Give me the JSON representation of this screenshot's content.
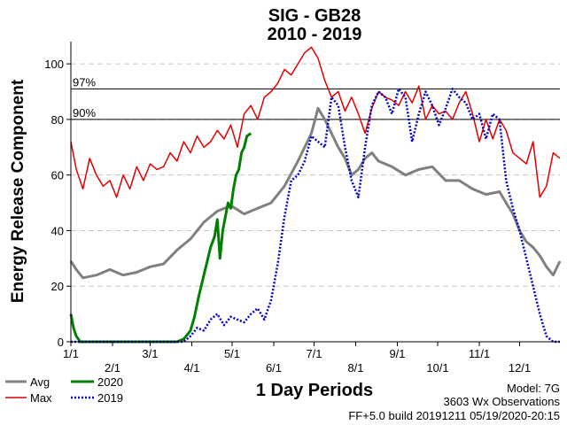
{
  "chart_data": {
    "type": "line",
    "title": "SIG - GB28",
    "subtitle": "2010 - 2019",
    "xlabel": "1 Day Periods",
    "ylabel": "Energy Release Component",
    "ylim": [
      0,
      108
    ],
    "yticks": [
      0,
      20,
      40,
      60,
      80,
      100
    ],
    "xlim": [
      1,
      365
    ],
    "xticks": [
      {
        "label": "1/1",
        "day": 1
      },
      {
        "label": "2/1",
        "day": 32
      },
      {
        "label": "3/1",
        "day": 60
      },
      {
        "label": "4/1",
        "day": 91
      },
      {
        "label": "5/1",
        "day": 121
      },
      {
        "label": "6/1",
        "day": 152
      },
      {
        "label": "7/1",
        "day": 182
      },
      {
        "label": "8/1",
        "day": 213
      },
      {
        "label": "9/1",
        "day": 244
      },
      {
        "label": "10/1",
        "day": 274
      },
      {
        "label": "11/1",
        "day": 305
      },
      {
        "label": "12/1",
        "day": 335
      }
    ],
    "grid": true,
    "reference_lines": [
      {
        "label": "97%",
        "value": 91
      },
      {
        "label": "90%",
        "value": 80
      }
    ],
    "series": [
      {
        "name": "Avg",
        "color": "#808080",
        "style": "solid",
        "x": [
          1,
          5,
          10,
          20,
          30,
          40,
          50,
          60,
          70,
          80,
          90,
          100,
          110,
          120,
          130,
          140,
          150,
          160,
          170,
          180,
          185,
          190,
          195,
          200,
          205,
          210,
          215,
          220,
          225,
          230,
          240,
          250,
          260,
          270,
          280,
          290,
          300,
          310,
          320,
          325,
          330,
          335,
          340,
          345,
          350,
          355,
          360,
          365
        ],
        "y": [
          29,
          26,
          23,
          24,
          26,
          24,
          25,
          27,
          28,
          33,
          37,
          43,
          47,
          49,
          46,
          48,
          50,
          56,
          65,
          75,
          84,
          80,
          75,
          70,
          66,
          60,
          62,
          66,
          68,
          65,
          63,
          60,
          62,
          63,
          58,
          58,
          55,
          53,
          54,
          50,
          46,
          40,
          36,
          34,
          31,
          27,
          24,
          29
        ]
      },
      {
        "name": "Max",
        "color": "#e00000",
        "style": "solid",
        "x": [
          1,
          5,
          10,
          15,
          20,
          25,
          30,
          35,
          40,
          45,
          50,
          55,
          60,
          65,
          70,
          75,
          80,
          85,
          90,
          95,
          100,
          105,
          110,
          115,
          120,
          125,
          130,
          135,
          140,
          145,
          150,
          155,
          160,
          165,
          170,
          175,
          180,
          185,
          190,
          195,
          200,
          205,
          210,
          215,
          220,
          225,
          230,
          235,
          240,
          245,
          250,
          255,
          260,
          265,
          270,
          275,
          280,
          285,
          290,
          295,
          300,
          305,
          310,
          315,
          320,
          325,
          330,
          335,
          340,
          345,
          350,
          355,
          360,
          365
        ],
        "y": [
          72,
          62,
          55,
          66,
          60,
          56,
          58,
          52,
          60,
          55,
          63,
          58,
          64,
          62,
          63,
          68,
          65,
          72,
          68,
          74,
          70,
          72,
          76,
          73,
          78,
          70,
          82,
          85,
          80,
          88,
          90,
          93,
          98,
          96,
          100,
          104,
          106,
          102,
          94,
          88,
          90,
          83,
          88,
          82,
          75,
          84,
          90,
          88,
          87,
          85,
          90,
          86,
          92,
          80,
          85,
          82,
          83,
          80,
          86,
          90,
          82,
          72,
          80,
          73,
          80,
          76,
          68,
          66,
          64,
          72,
          52,
          56,
          68,
          66
        ]
      },
      {
        "name": "2020",
        "color": "#008000",
        "style": "solid",
        "x": [
          1,
          3,
          5,
          8,
          12,
          20,
          40,
          60,
          70,
          75,
          80,
          85,
          90,
          93,
          96,
          100,
          103,
          105,
          108,
          110,
          112,
          114,
          116,
          118,
          120,
          122,
          124,
          126,
          128,
          130,
          132,
          135
        ],
        "y": [
          10,
          5,
          2,
          0,
          0,
          0,
          0,
          0,
          0,
          0,
          0,
          1,
          4,
          9,
          16,
          24,
          30,
          34,
          38,
          44,
          30,
          40,
          45,
          50,
          48,
          55,
          60,
          62,
          68,
          70,
          74,
          75
        ]
      },
      {
        "name": "2019",
        "color": "#0000cc",
        "style": "dotted",
        "x": [
          1,
          20,
          40,
          60,
          75,
          80,
          85,
          90,
          95,
          100,
          105,
          110,
          115,
          120,
          125,
          130,
          135,
          140,
          145,
          150,
          155,
          160,
          165,
          170,
          175,
          180,
          185,
          190,
          195,
          200,
          205,
          210,
          215,
          220,
          225,
          230,
          235,
          240,
          245,
          250,
          255,
          260,
          265,
          270,
          275,
          280,
          285,
          290,
          295,
          300,
          305,
          310,
          315,
          320,
          325,
          330,
          335,
          340,
          345,
          350,
          355,
          360,
          365
        ],
        "y": [
          0,
          0,
          0,
          0,
          0,
          0,
          0,
          2,
          5,
          4,
          8,
          10,
          6,
          9,
          8,
          7,
          10,
          12,
          8,
          15,
          28,
          45,
          58,
          60,
          65,
          74,
          72,
          70,
          88,
          85,
          70,
          58,
          52,
          70,
          85,
          90,
          88,
          82,
          91,
          88,
          72,
          82,
          90,
          85,
          78,
          84,
          91,
          88,
          86,
          80,
          82,
          73,
          82,
          80,
          58,
          48,
          40,
          30,
          20,
          10,
          2,
          0,
          0
        ]
      }
    ],
    "legend": {
      "placement": "bottom-left",
      "entries": [
        "Avg",
        "Max",
        "2020",
        "2019"
      ]
    }
  },
  "footer": {
    "model": "Model: 7G",
    "observations": "3603 Wx Observations",
    "build": "FF+5.0 build 20191211 05/19/2020-20:15"
  }
}
